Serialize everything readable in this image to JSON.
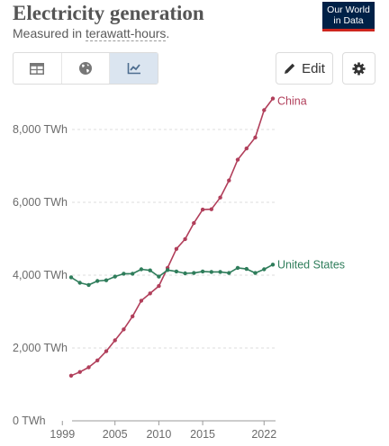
{
  "header": {
    "title": "Electricity generation",
    "subtitle_prefix": "Measured in ",
    "subtitle_unit": "terawatt-hours",
    "subtitle_suffix": ".",
    "logo_line1": "Our World",
    "logo_line2": "in Data"
  },
  "toolbar": {
    "tabs": [
      {
        "icon": "table-icon",
        "active": false
      },
      {
        "icon": "globe-icon",
        "active": false
      },
      {
        "icon": "line-chart-icon",
        "active": true
      }
    ],
    "edit_label": "Edit",
    "settings_icon": "gear-icon"
  },
  "chart_data": {
    "type": "line",
    "title": "Electricity generation",
    "subtitle": "Measured in terawatt-hours.",
    "xlim": [
      1996,
      2022
    ],
    "ylim": [
      0,
      9000
    ],
    "x_ticks": [
      1999,
      2005,
      2010,
      2015,
      2022
    ],
    "x_tick_labels": [
      "1999",
      "2005",
      "2010",
      "2015",
      "2022"
    ],
    "y_ticks": [
      0,
      2000,
      4000,
      6000,
      8000
    ],
    "y_tick_labels": [
      "0 TWh",
      "2,000 TWh",
      "4,000 TWh",
      "6,000 TWh",
      "8,000 TWh"
    ],
    "grid": "horizontal dashed",
    "legend": "labels at line ends (right)",
    "x": [
      2000,
      2001,
      2002,
      2003,
      2004,
      2005,
      2006,
      2007,
      2008,
      2009,
      2010,
      2011,
      2012,
      2013,
      2014,
      2015,
      2016,
      2017,
      2018,
      2019,
      2020,
      2021,
      2022,
      2023
    ],
    "series": [
      {
        "name": "China",
        "color": "#b13f5b",
        "values": [
          1240,
          1340,
          1470,
          1660,
          1910,
          2210,
          2510,
          2870,
          3300,
          3500,
          3700,
          4200,
          4720,
          4990,
          5430,
          5800,
          5810,
          6130,
          6600,
          7170,
          7480,
          7780,
          8530,
          8850
        ]
      },
      {
        "name": "United States",
        "color": "#2f7d5b",
        "values": [
          3940,
          3790,
          3730,
          3840,
          3860,
          3960,
          4040,
          4040,
          4160,
          4130,
          3960,
          4140,
          4100,
          4050,
          4060,
          4100,
          4090,
          4090,
          4060,
          4200,
          4170,
          4060,
          4160,
          4290
        ]
      }
    ]
  }
}
